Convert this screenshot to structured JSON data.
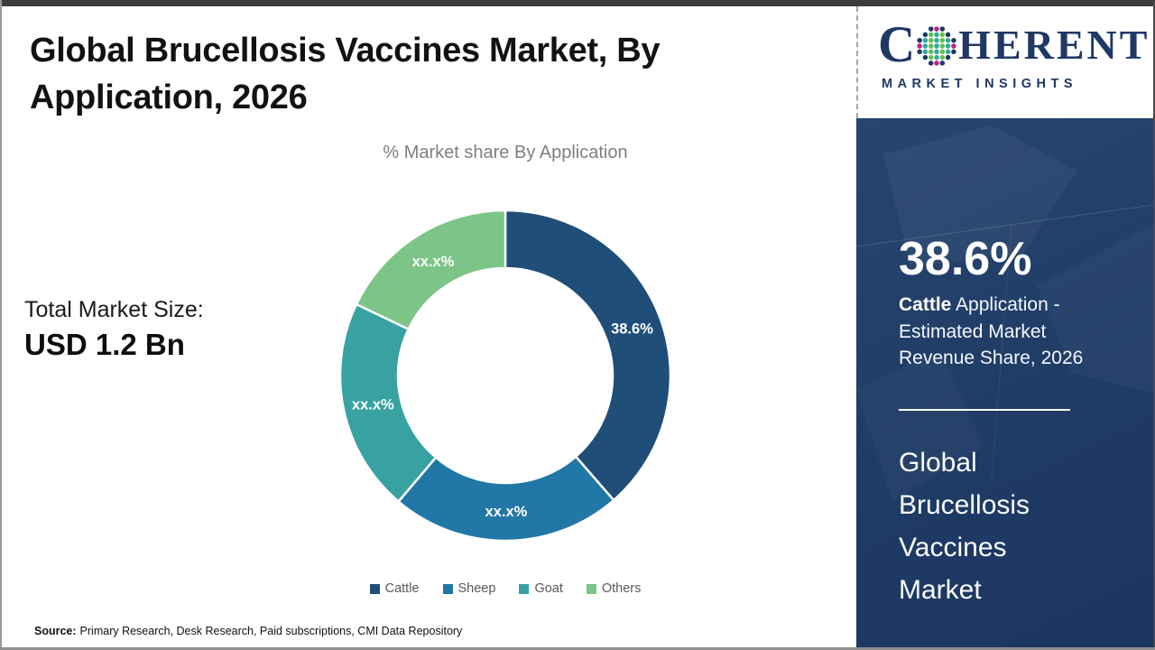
{
  "header": {
    "title": "Global Brucellosis Vaccines Market, By Application, 2026"
  },
  "chart": {
    "subtitle": "% Market share By Application"
  },
  "chart_data": {
    "type": "pie",
    "donut": true,
    "title": "% Market share By Application",
    "categories": [
      "Cattle",
      "Sheep",
      "Goat",
      "Others"
    ],
    "values": [
      38.6,
      22.6,
      20.9,
      17.9
    ],
    "slice_labels": [
      "38.6%",
      "xx.x%",
      "xx.x%",
      "xx.x%"
    ],
    "colors": [
      "#1F4E79",
      "#2177A5",
      "#37A2A1",
      "#7DC487"
    ],
    "legend_position": "bottom",
    "start_angle_deg": 0,
    "direction": "clockwise"
  },
  "market_size": {
    "label": "Total Market Size:",
    "value": "USD 1.2 Bn"
  },
  "source": {
    "prefix": "Source:",
    "text": "Primary Research, Desk Research, Paid subscriptions, CMI Data Repository"
  },
  "sidebar": {
    "logo": {
      "c": "C",
      "rest": "HERENT",
      "tagline": "MARKET INSIGHTS",
      "brand_navy": "#1F3864",
      "globe_colors": {
        "navy": "#1F3864",
        "teal": "#2FA7A7",
        "green": "#6ABF4B",
        "magenta": "#C01F8B"
      }
    },
    "stat": {
      "value": "38.6%",
      "desc_bold": "Cattle",
      "desc_rest": " Application - Estimated Market Revenue Share, 2026"
    },
    "market_title": "Global Brucellosis Vaccines Market",
    "panel_color": "#1E3A64"
  }
}
